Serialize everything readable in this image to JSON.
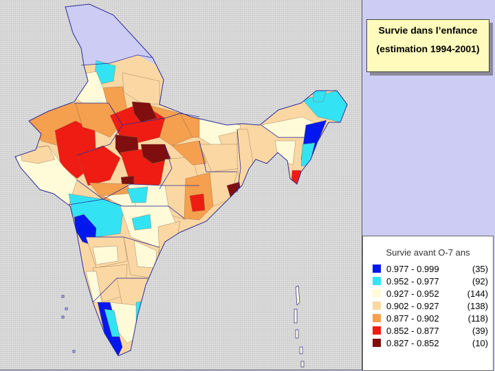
{
  "title_box": {
    "title": "Survie dans l’enfance",
    "subtitle": "(estimation 1994-2001)"
  },
  "legend": {
    "title": "Survie avant O-7 ans",
    "items": [
      {
        "range": "0.977 - 0.999",
        "count": "(35)",
        "color": "#0018ee"
      },
      {
        "range": "0.952 - 0.977",
        "count": "(92)",
        "color": "#33e3f3"
      },
      {
        "range": "0.927 - 0.952",
        "count": "(144)",
        "color": "#fffbd8"
      },
      {
        "range": "0.902 - 0.927",
        "count": "(138)",
        "color": "#fbd8a3"
      },
      {
        "range": "0.877 - 0.902",
        "count": "(118)",
        "color": "#f5a04e"
      },
      {
        "range": "0.852 - 0.877",
        "count": "(39)",
        "color": "#ee1c12"
      },
      {
        "range": "0.827 - 0.852",
        "count": "(10)",
        "color": "#7f0f0e"
      }
    ]
  },
  "colors": {
    "background": "#ccccf4",
    "map_hatch": "#dcdcdc",
    "title_fill": "#fffbbc",
    "boundary": "#2a2a9a"
  }
}
